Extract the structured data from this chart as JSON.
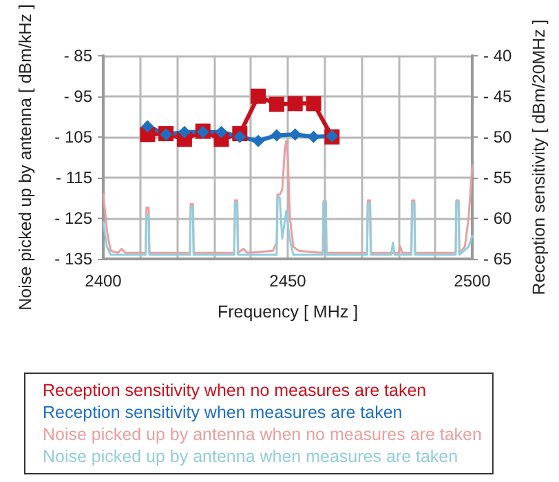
{
  "chart_data": {
    "type": "line",
    "xlabel": "Frequency [ MHz ]",
    "ylabel": "Noise picked up by antenna [ dBm/kHz ]",
    "y2label": "Reception sensitivity [ dBm/20MHz ]",
    "xlim": [
      2400,
      2500
    ],
    "xticks": [
      2400,
      {
        "value": 2410,
        "label": null
      },
      {
        "value": 2420,
        "label": null
      },
      {
        "value": 2430,
        "label": null
      },
      {
        "value": 2440,
        "label": null
      },
      2450,
      {
        "value": 2460,
        "label": null
      },
      {
        "value": 2470,
        "label": null
      },
      {
        "value": 2480,
        "label": null
      },
      {
        "value": 2490,
        "label": null
      },
      2500
    ],
    "ylim": [
      -135,
      -85
    ],
    "yticks": [
      {
        "value": -135,
        "label": "- 135"
      },
      {
        "value": -125,
        "label": "- 125"
      },
      {
        "value": -115,
        "label": "- 115"
      },
      {
        "value": -105,
        "label": "- 105"
      },
      {
        "value": -95,
        "label": "- 95"
      },
      {
        "value": -85,
        "label": "- 85"
      }
    ],
    "y2lim": [
      -65,
      -40
    ],
    "y2ticks": [
      {
        "value": -65,
        "label": "- 65"
      },
      {
        "value": -60,
        "label": "- 60"
      },
      {
        "value": -55,
        "label": "- 55"
      },
      {
        "value": -50,
        "label": "- 50"
      },
      {
        "value": -45,
        "label": "- 45"
      },
      {
        "value": -40,
        "label": "- 40"
      }
    ],
    "grid": true,
    "legend": "bottom",
    "line_style": "solid",
    "series": [
      {
        "name": "Reception sensitivity when no measures are taken",
        "color": "#c8101c",
        "axis": "y2",
        "marker": "square",
        "x": [
          2412,
          2417,
          2422,
          2427,
          2432,
          2437,
          2442,
          2447,
          2452,
          2457,
          2462
        ],
        "values": [
          -49.7,
          -49.6,
          -50.3,
          -49.3,
          -50.3,
          -49.6,
          -45.0,
          -46.0,
          -45.9,
          -45.9,
          -50.0
        ]
      },
      {
        "name": "Reception sensitivity when measures are taken",
        "color": "#1f6fc0",
        "axis": "y2",
        "marker": "diamond",
        "x": [
          2412,
          2417,
          2422,
          2427,
          2432,
          2437,
          2442,
          2447,
          2452,
          2457,
          2462
        ],
        "values": [
          -48.7,
          -49.7,
          -49.4,
          -49.4,
          -49.4,
          -50.0,
          -50.5,
          -49.8,
          -49.7,
          -50.0,
          -49.9
        ]
      },
      {
        "name": "Noise picked up by antenna when no measures are taken",
        "color": "#e8a0a0",
        "marker": "none",
        "x": [
          2400,
          2401,
          2402,
          2404,
          2405,
          2406,
          2411.5,
          2411.7,
          2412.3,
          2412.5,
          2423.5,
          2423.7,
          2424.3,
          2424.5,
          2435.5,
          2435.7,
          2436.3,
          2436.5,
          2438,
          2439,
          2446,
          2447,
          2447.2,
          2447.8,
          2448.5,
          2449.2,
          2449.6,
          2450,
          2450.6,
          2451.5,
          2453,
          2459.5,
          2459.7,
          2460.3,
          2460.5,
          2471.5,
          2471.7,
          2472.3,
          2472.5,
          2480,
          2480.5,
          2481,
          2483.5,
          2483.7,
          2484.3,
          2484.5,
          2495.5,
          2495.7,
          2496.3,
          2496.5,
          2498,
          2499,
          2500
        ],
        "values": [
          -119,
          -128,
          -133,
          -133.5,
          -132.5,
          -133.5,
          -133.5,
          -122.4,
          -122.4,
          -133.5,
          -133.5,
          -121.5,
          -121.5,
          -133.5,
          -133.5,
          -120.6,
          -120.6,
          -133.5,
          -132.5,
          -133.5,
          -133,
          -131,
          -119.2,
          -119.2,
          -118,
          -108,
          -106,
          -110,
          -125,
          -132,
          -133,
          -133.5,
          -120.8,
          -120.8,
          -133.5,
          -133.5,
          -120.6,
          -120.6,
          -133.5,
          -133.5,
          -132,
          -133.5,
          -133.5,
          -120.6,
          -120.6,
          -133.5,
          -133.5,
          -120.6,
          -120.6,
          -133.5,
          -132,
          -125,
          -112
        ]
      },
      {
        "name": "Noise picked up by antenna when measures are taken",
        "color": "#92cddc",
        "marker": "none",
        "x": [
          2400,
          2401,
          2402,
          2411.5,
          2411.7,
          2412.3,
          2412.5,
          2423.5,
          2423.7,
          2424.3,
          2424.5,
          2435.5,
          2435.7,
          2436.3,
          2436.5,
          2447,
          2447.2,
          2447.8,
          2448.5,
          2449.6,
          2450.5,
          2451.5,
          2459.5,
          2459.7,
          2460.3,
          2460.5,
          2471.5,
          2471.7,
          2472.3,
          2472.5,
          2478,
          2478.5,
          2479,
          2483.5,
          2483.7,
          2484.3,
          2484.5,
          2495.5,
          2495.7,
          2496.3,
          2496.5,
          2499,
          2500
        ],
        "values": [
          -126,
          -132,
          -134,
          -134,
          -124.3,
          -124.3,
          -134,
          -134,
          -122.2,
          -122.2,
          -134,
          -134,
          -121.1,
          -121.1,
          -134,
          -134,
          -119.9,
          -119.9,
          -130,
          -123.2,
          -130,
          -134,
          -134,
          -121,
          -121,
          -134,
          -134,
          -121.3,
          -121.3,
          -134,
          -134,
          -131,
          -134,
          -134,
          -121.3,
          -121.3,
          -134,
          -134,
          -120.9,
          -120.9,
          -134,
          -132,
          -129.3
        ]
      }
    ]
  }
}
